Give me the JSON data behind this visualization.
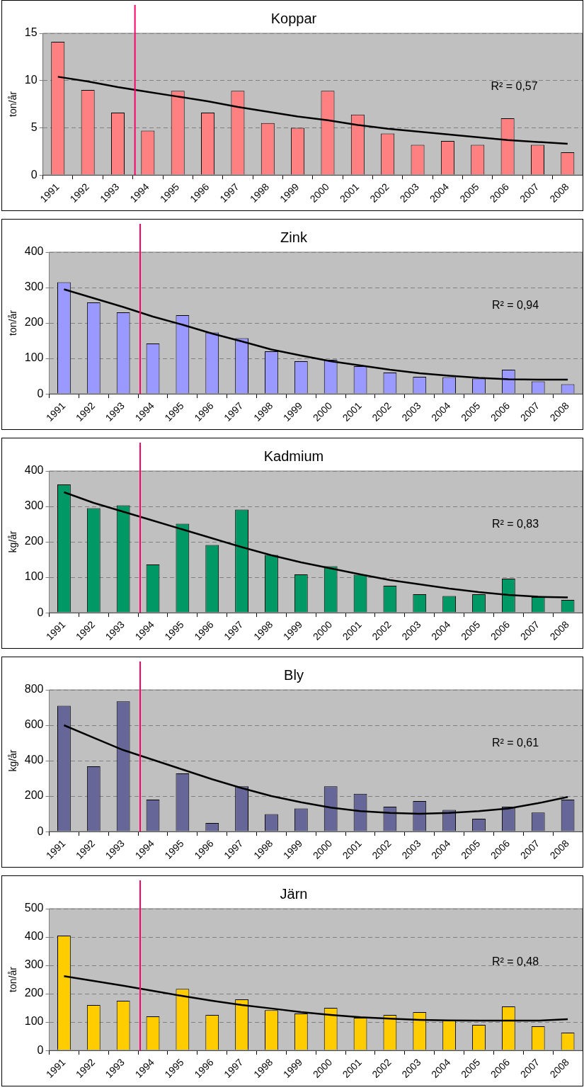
{
  "chart_data": [
    {
      "type": "bar",
      "title": "Koppar",
      "ylabel": "ton/år",
      "categories": [
        "1991",
        "1992",
        "1993",
        "1994",
        "1995",
        "1996",
        "1997",
        "1998",
        "1999",
        "2000",
        "2001",
        "2002",
        "2003",
        "2004",
        "2005",
        "2006",
        "2007",
        "2008"
      ],
      "series": [
        {
          "color": "#ff8080",
          "values": [
            14.1,
            9.0,
            6.6,
            4.7,
            8.9,
            6.6,
            8.9,
            5.5,
            5.0,
            8.9,
            6.4,
            4.4,
            3.2,
            3.6,
            3.2,
            6.0,
            3.2,
            2.4
          ]
        },
        {
          "type": "line",
          "color": "#000000",
          "values": [
            10.4,
            9.9,
            9.3,
            8.8,
            8.3,
            7.8,
            7.2,
            6.7,
            6.2,
            5.8,
            5.3,
            4.9,
            4.6,
            4.3,
            4.0,
            3.7,
            3.5,
            3.3
          ]
        }
      ],
      "ylim": [
        0,
        15
      ],
      "yticks": [
        0,
        5,
        10,
        15
      ],
      "grid": "y",
      "legend": false,
      "marker": "none",
      "annotations": [
        "R² = 0,57"
      ],
      "ref_lines": [
        {
          "axis": "x",
          "value": "1994",
          "color": "#ff0066"
        }
      ]
    },
    {
      "type": "bar",
      "title": "Zink",
      "ylabel": "ton/år",
      "categories": [
        "1991",
        "1992",
        "1993",
        "1994",
        "1995",
        "1996",
        "1997",
        "1998",
        "1999",
        "2000",
        "2001",
        "2002",
        "2003",
        "2004",
        "2005",
        "2006",
        "2007",
        "2008"
      ],
      "series": [
        {
          "color": "#9999ff",
          "values": [
            315,
            258,
            230,
            142,
            222,
            173,
            157,
            120,
            92,
            96,
            78,
            60,
            48,
            47,
            43,
            68,
            35,
            27
          ]
        },
        {
          "type": "line",
          "color": "#000000",
          "values": [
            295,
            270,
            245,
            218,
            195,
            170,
            148,
            125,
            108,
            92,
            80,
            68,
            58,
            51,
            45,
            41,
            40,
            40
          ]
        }
      ],
      "ylim": [
        0,
        400
      ],
      "yticks": [
        0,
        100,
        200,
        300,
        400
      ],
      "grid": "y",
      "legend": false,
      "marker": "none",
      "annotations": [
        "R² = 0,94"
      ],
      "ref_lines": [
        {
          "axis": "x",
          "value": "1994",
          "color": "#ff0066"
        }
      ]
    },
    {
      "type": "bar",
      "title": "Kadmium",
      "ylabel": "kg/år",
      "categories": [
        "1991",
        "1992",
        "1993",
        "1994",
        "1995",
        "1996",
        "1997",
        "1998",
        "1999",
        "2000",
        "2001",
        "2002",
        "2003",
        "2004",
        "2005",
        "2006",
        "2007",
        "2008"
      ],
      "series": [
        {
          "color": "#009966",
          "values": [
            362,
            295,
            303,
            136,
            251,
            191,
            291,
            163,
            108,
            131,
            107,
            76,
            52,
            47,
            52,
            96,
            44,
            36
          ]
        },
        {
          "type": "line",
          "color": "#000000",
          "values": [
            340,
            310,
            285,
            260,
            235,
            210,
            185,
            162,
            142,
            125,
            108,
            92,
            80,
            68,
            58,
            50,
            45,
            43
          ]
        }
      ],
      "ylim": [
        0,
        400
      ],
      "yticks": [
        0,
        100,
        200,
        300,
        400
      ],
      "grid": "y",
      "legend": false,
      "marker": "none",
      "annotations": [
        "R² = 0,83"
      ],
      "ref_lines": [
        {
          "axis": "x",
          "value": "1994",
          "color": "#ff0066"
        }
      ]
    },
    {
      "type": "bar",
      "title": "Bly",
      "ylabel": "kg/år",
      "categories": [
        "1991",
        "1992",
        "1993",
        "1994",
        "1995",
        "1996",
        "1997",
        "1998",
        "1999",
        "2000",
        "2001",
        "2002",
        "2003",
        "2004",
        "2005",
        "2006",
        "2007",
        "2008"
      ],
      "series": [
        {
          "color": "#666699",
          "values": [
            710,
            368,
            735,
            180,
            328,
            48,
            255,
            98,
            130,
            255,
            213,
            140,
            172,
            122,
            72,
            140,
            107,
            180
          ]
        },
        {
          "type": "line",
          "color": "#000000",
          "values": [
            600,
            530,
            460,
            405,
            350,
            295,
            245,
            200,
            165,
            135,
            115,
            105,
            100,
            105,
            115,
            130,
            160,
            195
          ]
        }
      ],
      "ylim": [
        0,
        800
      ],
      "yticks": [
        0,
        200,
        400,
        600,
        800
      ],
      "grid": "y",
      "legend": false,
      "marker": "none",
      "annotations": [
        "R² = 0,61"
      ],
      "ref_lines": [
        {
          "axis": "x",
          "value": "1994",
          "color": "#ff0066"
        }
      ]
    },
    {
      "type": "bar",
      "title": "Järn",
      "ylabel": "ton/år",
      "categories": [
        "1991",
        "1992",
        "1993",
        "1994",
        "1995",
        "1996",
        "1997",
        "1998",
        "1999",
        "2000",
        "2001",
        "2002",
        "2003",
        "2004",
        "2005",
        "2006",
        "2007",
        "2008"
      ],
      "series": [
        {
          "color": "#ffcc00",
          "values": [
            405,
            160,
            175,
            120,
            217,
            125,
            180,
            142,
            130,
            150,
            115,
            125,
            135,
            108,
            90,
            155,
            85,
            63
          ]
        },
        {
          "type": "line",
          "color": "#000000",
          "values": [
            262,
            245,
            228,
            210,
            192,
            175,
            160,
            148,
            135,
            125,
            117,
            112,
            108,
            106,
            105,
            105,
            105,
            110
          ]
        }
      ],
      "ylim": [
        0,
        500
      ],
      "yticks": [
        0,
        100,
        200,
        300,
        400,
        500
      ],
      "grid": "y",
      "legend": false,
      "marker": "none",
      "annotations": [
        "R² = 0,48"
      ],
      "ref_lines": [
        {
          "axis": "x",
          "value": "1994",
          "color": "#ff0066"
        }
      ]
    }
  ]
}
